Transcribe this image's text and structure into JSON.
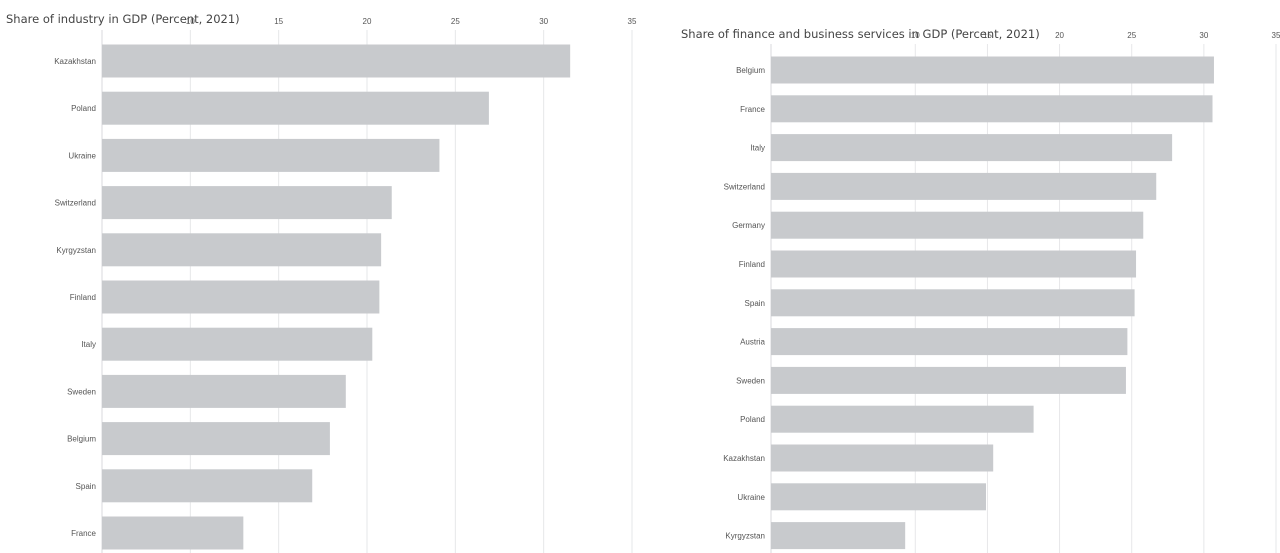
{
  "chart_data": [
    {
      "type": "bar",
      "orientation": "horizontal",
      "title": "Share of industry in GDP (Percent, 2021)",
      "categories": [
        "Kazakhstan",
        "Poland",
        "Ukraine",
        "Switzerland",
        "Kyrgyzstan",
        "Finland",
        "Italy",
        "Sweden",
        "Belgium",
        "Spain",
        "France"
      ],
      "values": [
        31.5,
        26.9,
        24.1,
        21.4,
        20.8,
        20.7,
        20.3,
        18.8,
        17.9,
        16.9,
        13.0
      ],
      "xticks": [
        "10",
        "15",
        "20",
        "25",
        "30",
        "35"
      ],
      "xlim": [
        5,
        35
      ],
      "grid": true,
      "bar_color": "#c8cacd"
    },
    {
      "type": "bar",
      "orientation": "horizontal",
      "title": "Share of finance and business services in GDP (Percent, 2021)",
      "categories": [
        "Belgium",
        "France",
        "Italy",
        "Switzerland",
        "Germany",
        "Finland",
        "Spain",
        "Austria",
        "Sweden",
        "Poland",
        "Kazakhstan",
        "Ukraine",
        "Kyrgyzstan"
      ],
      "values": [
        30.7,
        30.6,
        27.8,
        26.7,
        25.8,
        25.3,
        25.2,
        24.7,
        24.6,
        18.2,
        15.4,
        14.9,
        9.3
      ],
      "xticks": [
        "10",
        "15",
        "20",
        "25",
        "30",
        "35"
      ],
      "xlim": [
        0,
        35
      ],
      "grid": true,
      "bar_color": "#c8cacd"
    }
  ]
}
